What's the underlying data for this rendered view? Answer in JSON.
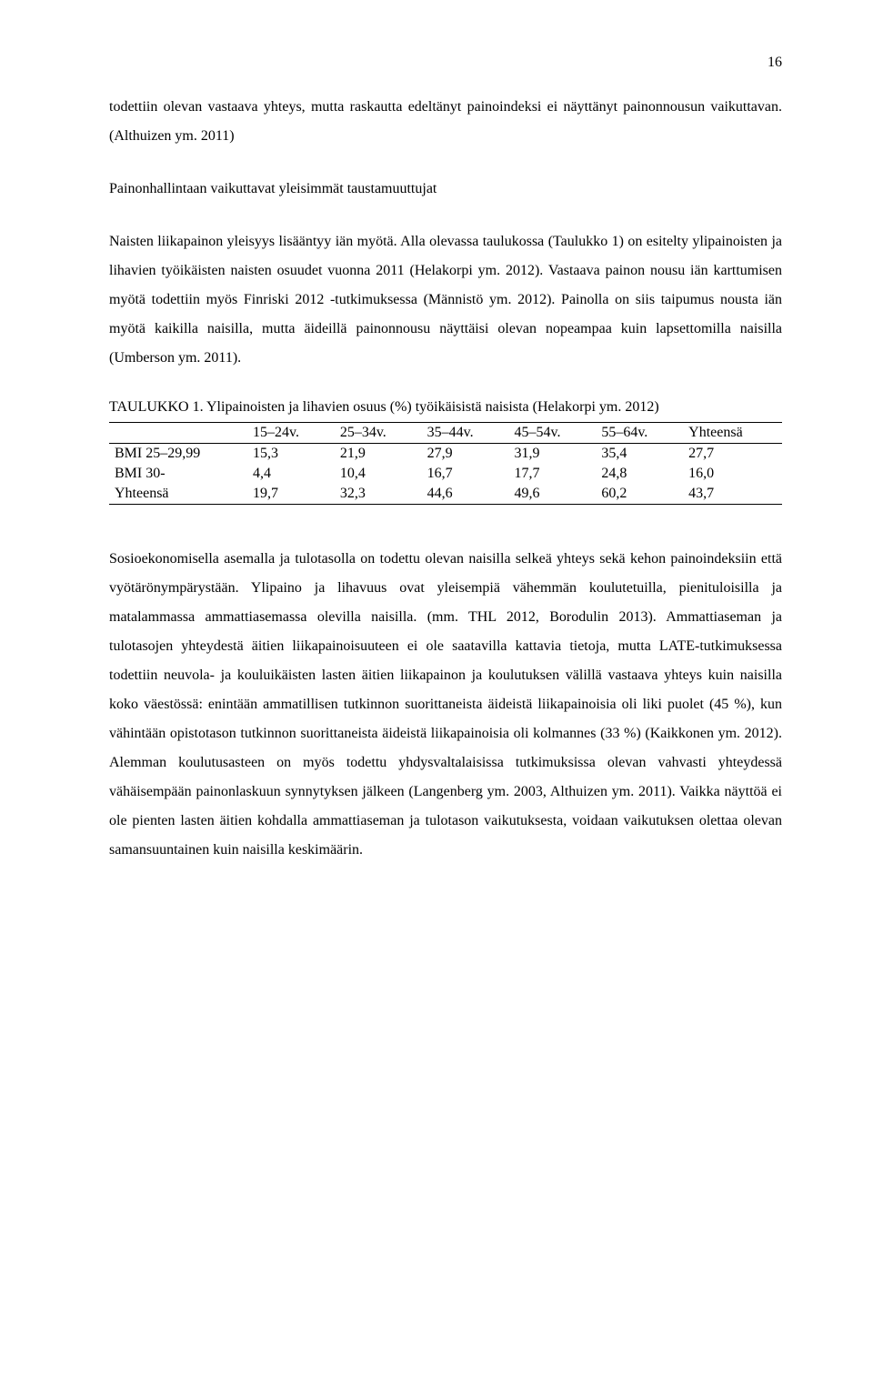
{
  "page_number": "16",
  "para1": "todettiin olevan vastaava yhteys, mutta raskautta edeltänyt painoindeksi ei näyttänyt painonnousun vaikuttavan. (Althuizen ym. 2011)",
  "para2_intro": "Painonhallintaan vaikuttavat yleisimmät taustamuuttujat",
  "para3": "Naisten liikapainon yleisyys lisääntyy iän myötä. Alla olevassa taulukossa (Taulukko 1) on esitelty ylipainoisten ja lihavien työikäisten naisten osuudet vuonna 2011 (Helakorpi ym. 2012). Vastaava painon nousu iän karttumisen myötä todettiin myös Finriski 2012 -tutkimuksessa (Männistö ym. 2012). Painolla on siis taipumus nousta iän myötä kaikilla naisilla, mutta äideillä painonnousu näyttäisi olevan nopeampaa kuin lapsettomilla naisilla (Umberson ym. 2011).",
  "table": {
    "title": "TAULUKKO 1. Ylipainoisten ja lihavien osuus (%) työikäisistä naisista (Helakorpi ym. 2012)",
    "columns": [
      "",
      "15–24v.",
      "25–34v.",
      "35–44v.",
      "45–54v.",
      "55–64v.",
      "Yhteensä"
    ],
    "rows": [
      [
        "BMI 25–29,99",
        "15,3",
        "21,9",
        "27,9",
        "31,9",
        "35,4",
        "27,7"
      ],
      [
        "BMI 30-",
        "4,4",
        "10,4",
        "16,7",
        "17,7",
        "24,8",
        "16,0"
      ],
      [
        "Yhteensä",
        "19,7",
        "32,3",
        "44,6",
        "49,6",
        "60,2",
        "43,7"
      ]
    ],
    "border_color": "#000000",
    "font_size_pt": 12
  },
  "para4": "Sosioekonomisella asemalla ja tulotasolla on todettu olevan naisilla selkeä yhteys sekä kehon painoindeksiin että vyötärönympärystään. Ylipaino ja lihavuus ovat yleisempiä vähemmän koulutetuilla, pienituloisilla ja matalammassa ammattiasemassa olevilla naisilla. (mm. THL 2012, Borodulin 2013). Ammattiaseman ja tulotasojen yhteydestä äitien liikapainoisuuteen ei ole saatavilla kattavia tietoja, mutta LATE-tutkimuksessa todettiin neuvola- ja kouluikäisten lasten äitien liikapainon ja koulutuksen välillä vastaava yhteys kuin naisilla koko väestössä: enintään ammatillisen tutkinnon suorittaneista äideistä liikapainoisia oli liki puolet (45 %), kun vähintään opistotason tutkinnon suorittaneista äideistä liikapainoisia oli kolmannes (33 %) (Kaikkonen ym. 2012). Alemman koulutusasteen on myös todettu yhdysvaltalaisissa tutkimuksissa olevan vahvasti yhteydessä vähäisempään painonlaskuun synnytyksen jälkeen (Langenberg ym. 2003, Althuizen ym. 2011). Vaikka näyttöä ei ole pienten lasten äitien kohdalla ammattiaseman ja tulotason vaikutuksesta, voidaan vaikutuksen olettaa olevan samansuuntainen kuin naisilla keskimäärin.",
  "typography": {
    "font_family": "Times New Roman",
    "body_font_size_pt": 12,
    "line_height": 2.0,
    "text_align": "justify",
    "text_color": "#000000",
    "background_color": "#ffffff"
  }
}
